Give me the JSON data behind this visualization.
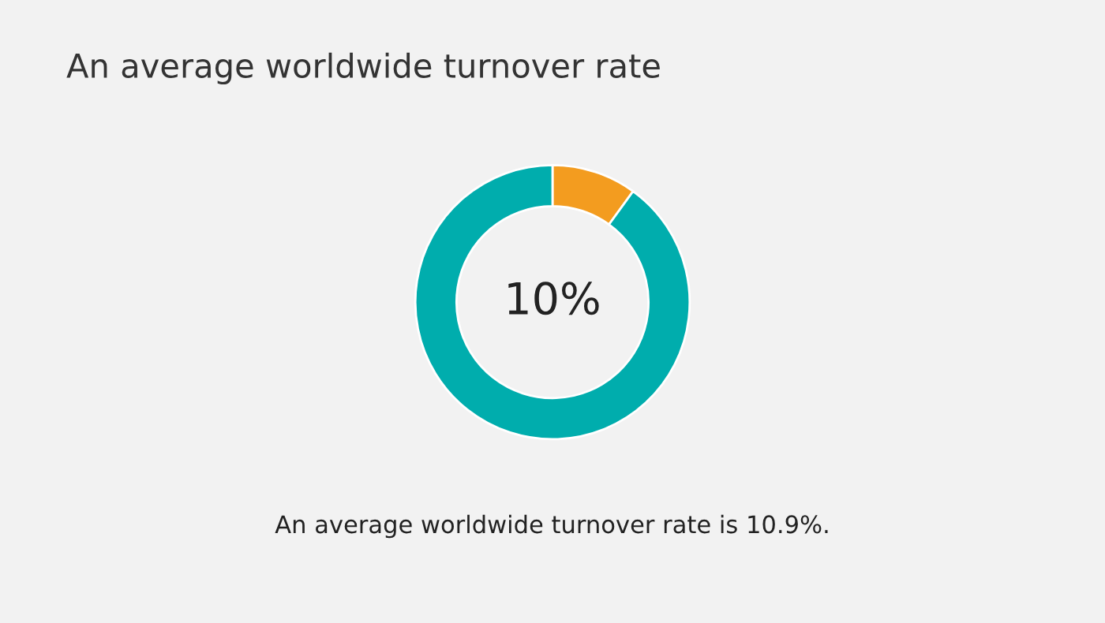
{
  "chart_data": {
    "type": "donut",
    "title": "An average worldwide turnover rate",
    "categories": [
      null,
      null
    ],
    "values": [
      10,
      90
    ],
    "colors": [
      "#f39c1f",
      "#00adad"
    ],
    "value_labels": [
      "10%",
      null
    ],
    "annotations": [
      "An average worldwide turnover rate is 10.9%."
    ]
  }
}
